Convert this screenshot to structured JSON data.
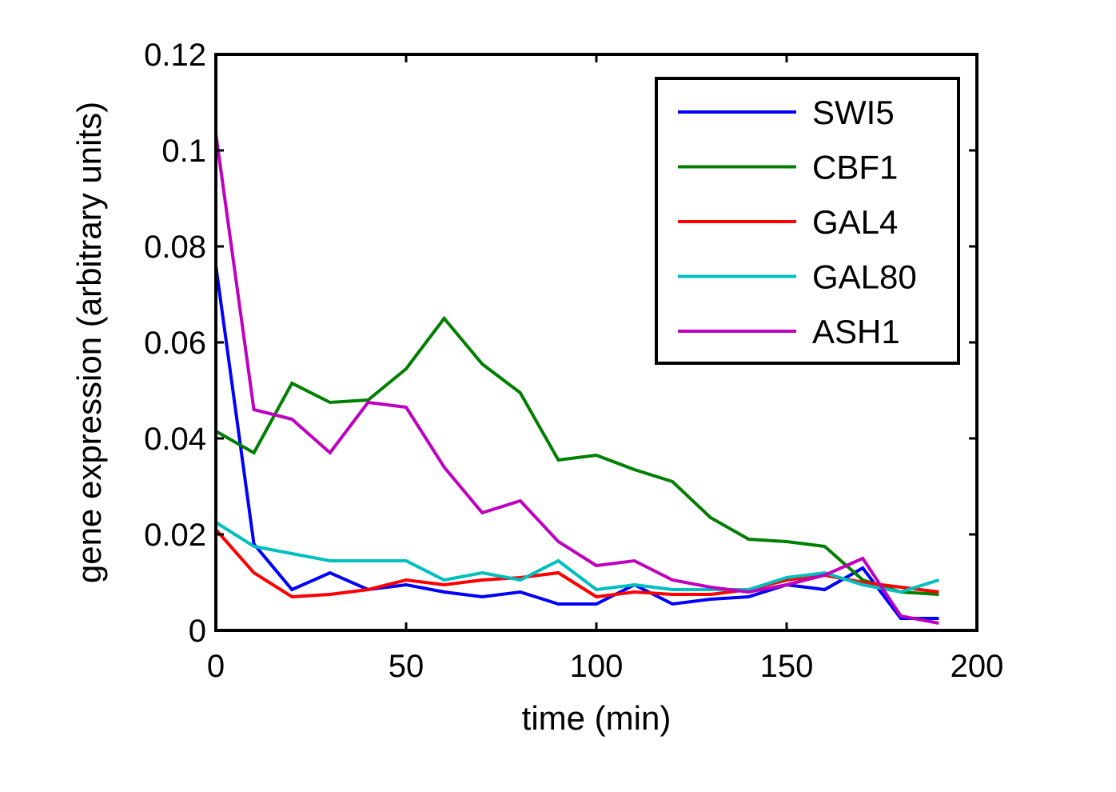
{
  "chart_data": {
    "type": "line",
    "xlabel": "time (min)",
    "ylabel": "gene expression (arbitrary units)",
    "xlim": [
      0,
      200
    ],
    "ylim": [
      0,
      0.12
    ],
    "xticks": [
      "0",
      "50",
      "100",
      "150",
      "200"
    ],
    "yticks": [
      "0",
      "0.02",
      "0.04",
      "0.06",
      "0.08",
      "0.1",
      "0.12"
    ],
    "grid": false,
    "legend_position": "top-right",
    "x": [
      0,
      10,
      20,
      30,
      40,
      50,
      60,
      70,
      80,
      90,
      100,
      110,
      120,
      130,
      140,
      150,
      160,
      170,
      180,
      190
    ],
    "series": [
      {
        "name": "SWI5",
        "color": "#0000ff",
        "values": [
          0.076,
          0.018,
          0.0085,
          0.012,
          0.0085,
          0.0095,
          0.008,
          0.007,
          0.008,
          0.0055,
          0.0055,
          0.0095,
          0.0055,
          0.0065,
          0.007,
          0.0095,
          0.0085,
          0.013,
          0.0025,
          0.0025
        ]
      },
      {
        "name": "CBF1",
        "color": "#007f00",
        "values": [
          0.0415,
          0.037,
          0.0515,
          0.0475,
          0.048,
          0.0545,
          0.065,
          0.0555,
          0.0495,
          0.0355,
          0.0365,
          0.0335,
          0.031,
          0.0235,
          0.019,
          0.0185,
          0.0175,
          0.0105,
          0.008,
          0.0075
        ]
      },
      {
        "name": "GAL4",
        "color": "#ff0000",
        "values": [
          0.021,
          0.012,
          0.007,
          0.0075,
          0.0085,
          0.0105,
          0.0095,
          0.0105,
          0.011,
          0.012,
          0.007,
          0.008,
          0.0075,
          0.0075,
          0.0085,
          0.0105,
          0.0115,
          0.01,
          0.009,
          0.008
        ]
      },
      {
        "name": "GAL80",
        "color": "#00bfbf",
        "values": [
          0.0225,
          0.0175,
          0.016,
          0.0145,
          0.0145,
          0.0145,
          0.0105,
          0.012,
          0.0105,
          0.0145,
          0.0085,
          0.0095,
          0.0085,
          0.0085,
          0.0085,
          0.011,
          0.012,
          0.0095,
          0.008,
          0.0105
        ]
      },
      {
        "name": "ASH1",
        "color": "#bf00bf",
        "values": [
          0.1035,
          0.046,
          0.044,
          0.037,
          0.0475,
          0.0465,
          0.034,
          0.0245,
          0.027,
          0.0185,
          0.0135,
          0.0145,
          0.0105,
          0.009,
          0.008,
          0.0095,
          0.0115,
          0.015,
          0.003,
          0.0015
        ]
      }
    ]
  }
}
